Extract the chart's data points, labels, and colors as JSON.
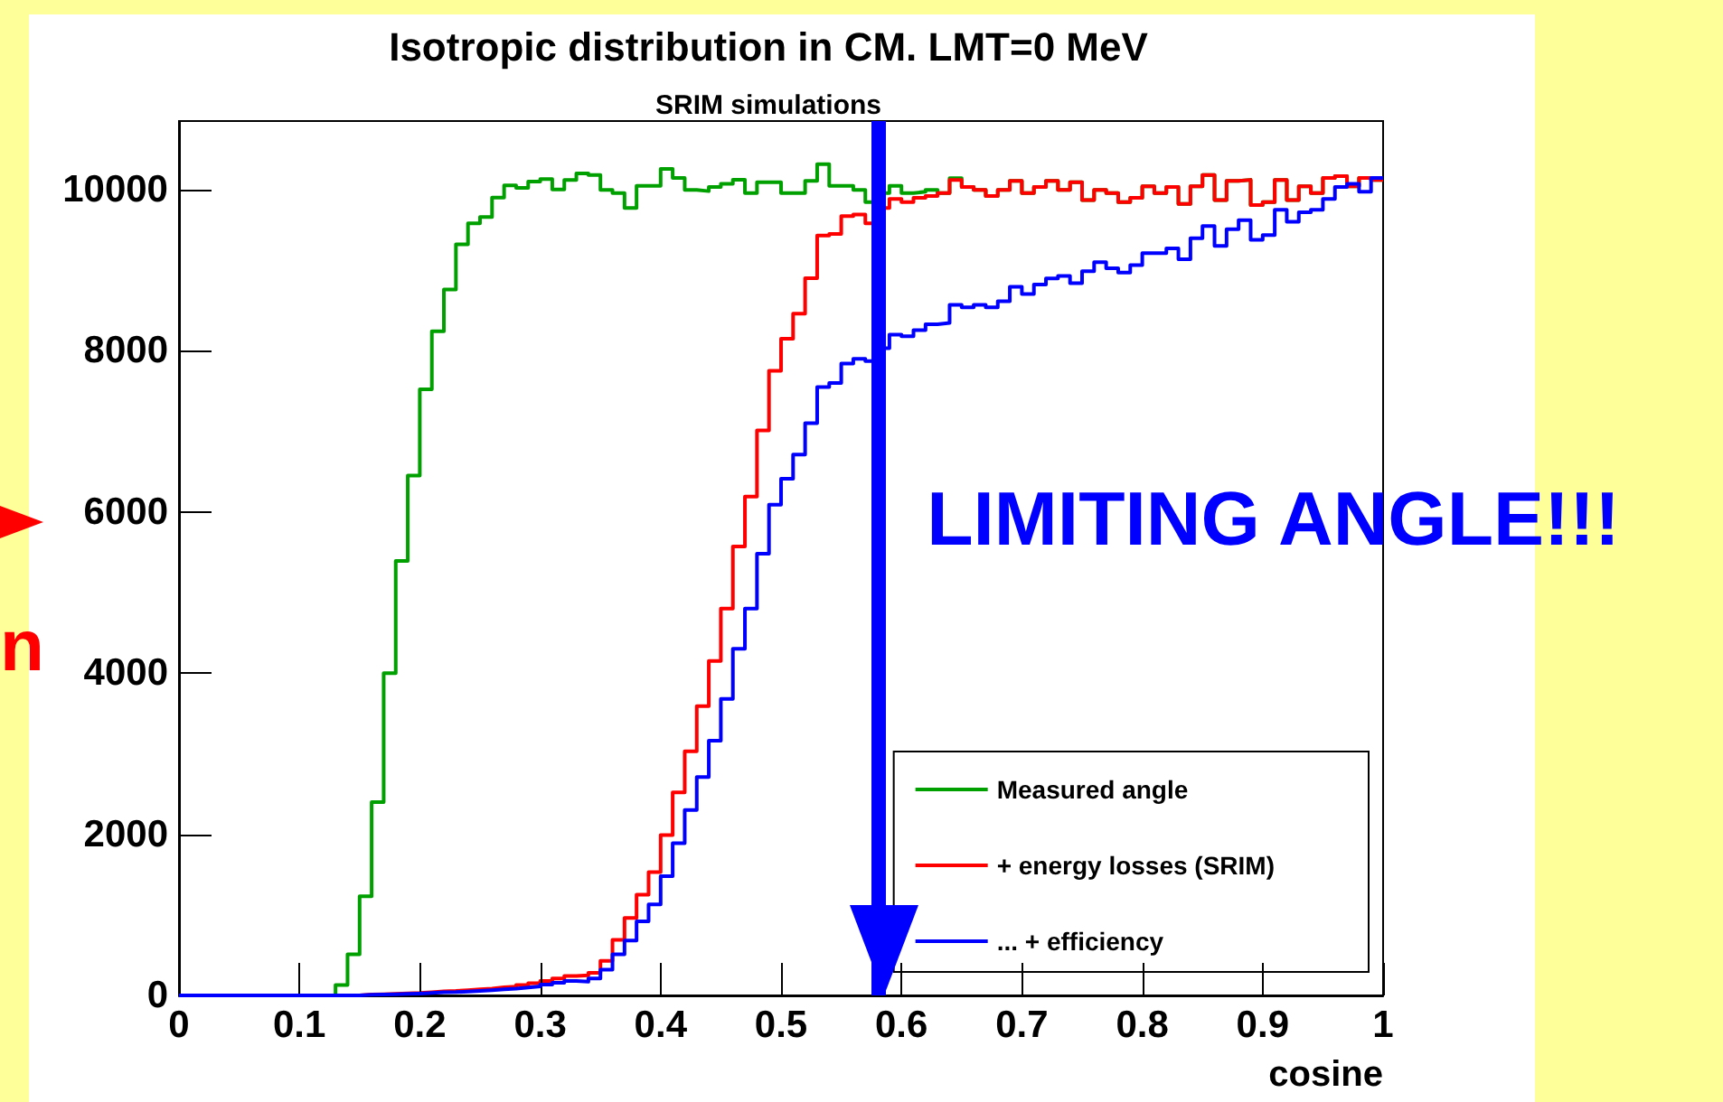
{
  "chart_data": {
    "type": "histogram",
    "title": "Isotropic distribution in CM. LMT=0 MeV",
    "subtitle": "SRIM simulations",
    "xlabel": "cosine",
    "bins": [
      0,
      0.01,
      0.02,
      0.03,
      0.04,
      0.05,
      0.06,
      0.07,
      0.08,
      0.09,
      0.1,
      0.11,
      0.12,
      0.13,
      0.14,
      0.15,
      0.16,
      0.17,
      0.18,
      0.19,
      0.2,
      0.21,
      0.22,
      0.23,
      0.24,
      0.25,
      0.26,
      0.27,
      0.28,
      0.29,
      0.3,
      0.31,
      0.32,
      0.33,
      0.34,
      0.35,
      0.36,
      0.37,
      0.38,
      0.39,
      0.4,
      0.41,
      0.42,
      0.43,
      0.44,
      0.45,
      0.46,
      0.47,
      0.48,
      0.49,
      0.5,
      0.51,
      0.52,
      0.53,
      0.54,
      0.55,
      0.56,
      0.57,
      0.58,
      0.59,
      0.6,
      0.61,
      0.62,
      0.63,
      0.64,
      0.65,
      0.66,
      0.67,
      0.68,
      0.69,
      0.7,
      0.71,
      0.72,
      0.73,
      0.74,
      0.75,
      0.76,
      0.77,
      0.78,
      0.79,
      0.8,
      0.81,
      0.82,
      0.83,
      0.84,
      0.85,
      0.86,
      0.87,
      0.88,
      0.89,
      0.9,
      0.91,
      0.92,
      0.93,
      0.94,
      0.95,
      0.96,
      0.97,
      0.98,
      0.99,
      1
    ],
    "series": [
      {
        "name": "Measured angle",
        "color": "#00a000",
        "values": [
          0,
          0,
          0,
          0,
          0,
          0,
          0,
          0,
          0,
          0,
          0,
          0,
          0,
          130,
          510,
          1230,
          2400,
          4000,
          5390,
          6450,
          7520,
          8240,
          8760,
          9320,
          9580,
          9660,
          9900,
          10050,
          10020,
          10100,
          10130,
          10000,
          10120,
          10200,
          10180,
          9995,
          9957,
          9771,
          10047,
          10047,
          10256,
          10144,
          9995,
          9980,
          10032,
          10070,
          10122,
          9957,
          10092,
          10092,
          9957,
          9957,
          10107,
          10316,
          10047,
          10047,
          9995,
          9845,
          9957,
          10047,
          9957,
          9972,
          9995,
          9957,
          10140,
          10032,
          9995,
          9920,
          9995,
          10107,
          9957,
          10032,
          10107,
          9995,
          10092,
          9868,
          9995,
          9957,
          9845,
          9898,
          10040,
          9957,
          10032,
          9823,
          10040,
          10181,
          9868,
          10107,
          10120,
          9808,
          9845,
          10120,
          9868,
          10040,
          9957,
          10144,
          10166,
          10040,
          10144,
          10120
        ]
      },
      {
        "name": "+ energy losses (SRIM)",
        "color": "#ff0000",
        "values": [
          0,
          0,
          0,
          0,
          0,
          0,
          0,
          0,
          0,
          0,
          0,
          0,
          0,
          0,
          0,
          10,
          15,
          20,
          25,
          30,
          40,
          50,
          55,
          65,
          75,
          85,
          100,
          110,
          130,
          150,
          180,
          210,
          240,
          250,
          280,
          430,
          690,
          960,
          1250,
          1530,
          1990,
          2520,
          3030,
          3590,
          4150,
          4800,
          5570,
          6190,
          7010,
          7750,
          8150,
          8460,
          8900,
          9430,
          9450,
          9670,
          9690,
          9580,
          9770,
          9883,
          9845,
          9898,
          9920,
          9957,
          10120,
          10032,
          9995,
          9920,
          9995,
          10107,
          9957,
          10032,
          10107,
          9995,
          10092,
          9868,
          9995,
          9957,
          9845,
          9898,
          10040,
          9957,
          10032,
          9823,
          10040,
          10181,
          9868,
          10107,
          10120,
          9808,
          9845,
          10120,
          9868,
          10040,
          9957,
          10144,
          10166,
          10040,
          10144,
          10120
        ]
      },
      {
        "name": "... + efficiency",
        "color": "#0000ff",
        "values": [
          0,
          0,
          0,
          0,
          0,
          0,
          0,
          0,
          0,
          0,
          0,
          0,
          0,
          0,
          0,
          8,
          11,
          15,
          19,
          23,
          30,
          38,
          41,
          49,
          56,
          64,
          75,
          83,
          98,
          113,
          135,
          158,
          180,
          170,
          210,
          320,
          510,
          680,
          920,
          1130,
          1480,
          1890,
          2300,
          2710,
          3160,
          3680,
          4300,
          4800,
          5480,
          6090,
          6410,
          6710,
          7100,
          7550,
          7600,
          7840,
          7900,
          7870,
          8030,
          8200,
          8180,
          8254,
          8329,
          8344,
          8568,
          8538,
          8568,
          8538,
          8613,
          8792,
          8703,
          8822,
          8897,
          8927,
          8837,
          8986,
          9098,
          9024,
          8971,
          9061,
          9211,
          9211,
          9270,
          9136,
          9397,
          9547,
          9300,
          9509,
          9621,
          9375,
          9435,
          9748,
          9599,
          9719,
          9748,
          9883,
          10032,
          10070,
          9973,
          10144
        ]
      }
    ],
    "xlim": [
      0,
      1
    ],
    "xticks": [
      0,
      0.1,
      0.2,
      0.3,
      0.4,
      0.5,
      0.6,
      0.7,
      0.8,
      0.9,
      1
    ],
    "ylim": [
      0,
      10850
    ],
    "yticks": [
      0,
      2000,
      4000,
      6000,
      8000,
      10000
    ],
    "ref_lines": [
      {
        "axis": "x",
        "value": 0.585,
        "label": "LIMITING ANGLE!!!",
        "color": "#0000ff"
      }
    ],
    "annotations": [
      "n"
    ],
    "grid": false,
    "legend": "bottom right",
    "marker": "none",
    "line_style": "solid"
  }
}
